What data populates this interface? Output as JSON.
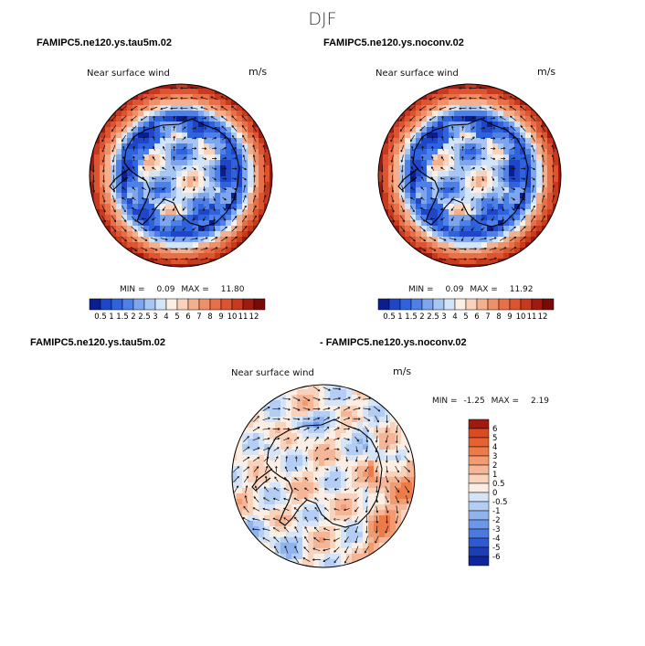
{
  "figure": {
    "title": "DJF"
  },
  "panels": [
    {
      "title": "FAMIPC5.ne120.ys.tau5m.02",
      "variable": "Near surface wind",
      "units": "m/s",
      "min_label": "MIN =",
      "min_value": "0.09",
      "max_label": "MAX =",
      "max_value": "11.80"
    },
    {
      "title": "FAMIPC5.ne120.ys.noconv.02",
      "variable": "Near surface wind",
      "units": "m/s",
      "min_label": "MIN =",
      "min_value": "0.09",
      "max_label": "MAX =",
      "max_value": "11.92"
    },
    {
      "title": "FAMIPC5.ne120.ys.tau5m.02",
      "title2": "- FAMIPC5.ne120.ys.noconv.02",
      "variable": "Near surface wind",
      "units": "m/s",
      "min_label": "MIN =",
      "min_value": "-1.25",
      "max_label": "MAX =",
      "max_value": "2.19"
    }
  ],
  "chart_data": [
    {
      "type": "heatmap",
      "projection": "south-polar-stereographic",
      "field": "Near surface wind speed with wind vectors",
      "units": "m/s",
      "min": 0.09,
      "max": 11.8,
      "colorbar": {
        "orientation": "horizontal",
        "levels": [
          "0.5",
          "1",
          "1.5",
          "2",
          "2.5",
          "3",
          "4",
          "5",
          "6",
          "7",
          "8",
          "9",
          "10",
          "11",
          "12"
        ],
        "colors": [
          "#0a1f8f",
          "#1f45c8",
          "#2f62dd",
          "#4f80e8",
          "#7ea6ef",
          "#a8c6f4",
          "#d3e3f8",
          "#fbeee4",
          "#f8d2bb",
          "#f3b08f",
          "#ee9069",
          "#e87048",
          "#dc5530",
          "#c73a1e",
          "#a01a10",
          "#7a0a08"
        ]
      }
    },
    {
      "type": "heatmap",
      "projection": "south-polar-stereographic",
      "field": "Near surface wind speed with wind vectors",
      "units": "m/s",
      "min": 0.09,
      "max": 11.92,
      "colorbar": {
        "orientation": "horizontal",
        "levels": [
          "0.5",
          "1",
          "1.5",
          "2",
          "2.5",
          "3",
          "4",
          "5",
          "6",
          "7",
          "8",
          "9",
          "10",
          "11",
          "12"
        ],
        "colors": [
          "#0a1f8f",
          "#1f45c8",
          "#2f62dd",
          "#4f80e8",
          "#7ea6ef",
          "#a8c6f4",
          "#d3e3f8",
          "#fbeee4",
          "#f8d2bb",
          "#f3b08f",
          "#ee9069",
          "#e87048",
          "#dc5530",
          "#c73a1e",
          "#a01a10",
          "#7a0a08"
        ]
      }
    },
    {
      "type": "heatmap",
      "projection": "south-polar-stereographic",
      "field": "Near surface wind difference",
      "units": "m/s",
      "min": -1.25,
      "max": 2.19,
      "colorbar": {
        "orientation": "vertical",
        "levels": [
          "6",
          "5",
          "4",
          "3",
          "2",
          "1",
          "0.5",
          "0",
          "-0.5",
          "-1",
          "-2",
          "-3",
          "-4",
          "-5",
          "-6"
        ],
        "colors": [
          "#a01a10",
          "#dc4a22",
          "#e8622f",
          "#ee7a48",
          "#f29a70",
          "#f5b697",
          "#f8d2bb",
          "#fbeee4",
          "#d6e4f8",
          "#b3cdf4",
          "#8fb3ef",
          "#6b97e8",
          "#4a79df",
          "#2f59d0",
          "#1c3db6",
          "#0f2599"
        ]
      }
    }
  ]
}
